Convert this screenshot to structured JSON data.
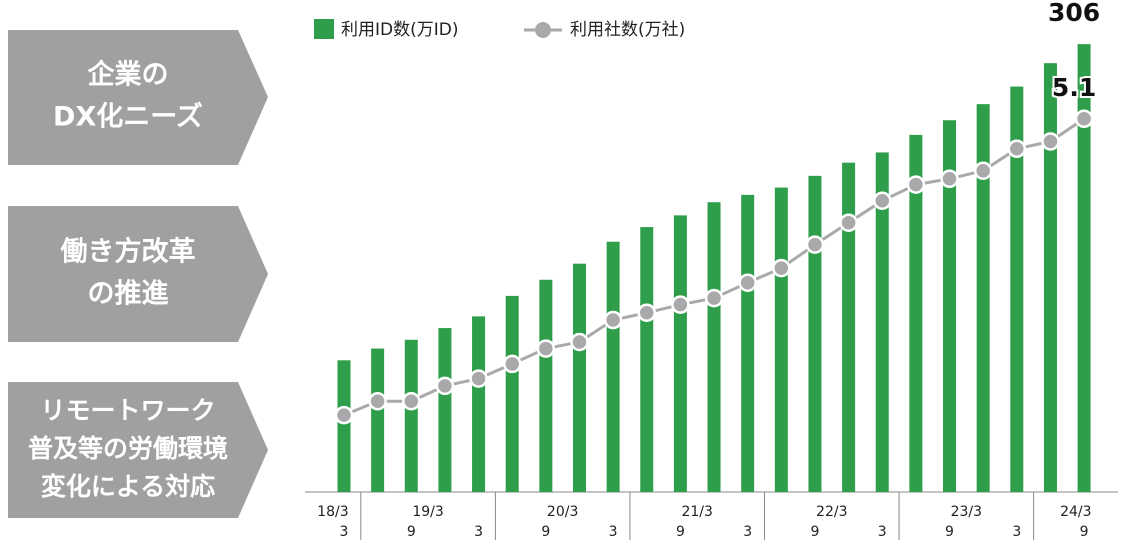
{
  "side_items": [
    {
      "lines": [
        "企業の",
        "DX化ニーズ"
      ]
    },
    {
      "lines": [
        "働き方改革",
        "の推進"
      ]
    },
    {
      "lines": [
        "リモートワーク",
        "普及等の労働環境",
        "変化による対応"
      ]
    }
  ],
  "chart_data": {
    "type": "bar_line",
    "group_labels": [
      "18/3",
      "19/3",
      "20/3",
      "21/3",
      "22/3",
      "23/3",
      "24/3"
    ],
    "categories": [
      "3",
      null,
      "9",
      null,
      "3",
      null,
      "9",
      null,
      "3",
      null,
      "9",
      null,
      "3",
      null,
      "9",
      null,
      "3",
      null,
      "9",
      null,
      "3",
      null,
      "9"
    ],
    "ylim": [
      0,
      330
    ],
    "y2lim": [
      0,
      6.6
    ],
    "series": [
      {
        "name": "利用ID数(万ID)",
        "color": "#2e9e4a",
        "type": "bar",
        "values": [
          90,
          98,
          104,
          112,
          120,
          134,
          145,
          156,
          171,
          181,
          189,
          198,
          203,
          208,
          216,
          225,
          232,
          244,
          254,
          265,
          277,
          293,
          306
        ]
      },
      {
        "name": "利用社数(万社)",
        "color": "#a9a9ab",
        "type": "line",
        "axis": "y2",
        "values": [
          1.05,
          1.24,
          1.24,
          1.45,
          1.55,
          1.75,
          1.96,
          2.05,
          2.35,
          2.45,
          2.56,
          2.65,
          2.86,
          3.06,
          3.38,
          3.68,
          3.98,
          4.2,
          4.28,
          4.39,
          4.69,
          4.79,
          5.1
        ]
      }
    ]
  }
}
